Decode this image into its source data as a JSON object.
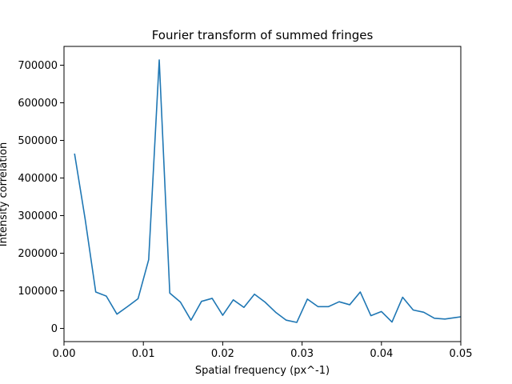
{
  "chart_data": {
    "type": "line",
    "title": "Fourier transform of summed fringes",
    "xlabel": "Spatial frequency (px^-1)",
    "ylabel": "Intensity correlation",
    "xlim": [
      0.0,
      0.05
    ],
    "ylim": [
      -35000,
      750000
    ],
    "xticks": [
      0.0,
      0.01,
      0.02,
      0.03,
      0.04,
      0.05
    ],
    "xtick_labels": [
      "0.00",
      "0.01",
      "0.02",
      "0.03",
      "0.04",
      "0.05"
    ],
    "yticks": [
      0,
      100000,
      200000,
      300000,
      400000,
      500000,
      600000,
      700000
    ],
    "ytick_labels": [
      "0",
      "100000",
      "200000",
      "300000",
      "400000",
      "500000",
      "600000",
      "700000"
    ],
    "grid": false,
    "series": [
      {
        "color": "#1f77b4",
        "x": [
          0.00133,
          0.00267,
          0.004,
          0.00533,
          0.00667,
          0.008,
          0.00933,
          0.01067,
          0.012,
          0.01333,
          0.01467,
          0.016,
          0.01733,
          0.01867,
          0.02,
          0.02133,
          0.02267,
          0.024,
          0.02533,
          0.02667,
          0.028,
          0.02933,
          0.03067,
          0.032,
          0.03333,
          0.03467,
          0.036,
          0.03733,
          0.03867,
          0.04,
          0.04133,
          0.04267,
          0.044,
          0.04533,
          0.04667,
          0.048,
          0.04933,
          0.05
        ],
        "y": [
          465000,
          290000,
          97000,
          86000,
          38000,
          58000,
          79000,
          183000,
          714000,
          94000,
          70000,
          22000,
          72000,
          80000,
          35000,
          76000,
          56000,
          91000,
          70000,
          43000,
          22000,
          16000,
          78000,
          58000,
          58000,
          71000,
          63000,
          97000,
          34000,
          45000,
          17000,
          83000,
          49000,
          43000,
          27000,
          25000,
          29000,
          31000
        ]
      }
    ]
  }
}
